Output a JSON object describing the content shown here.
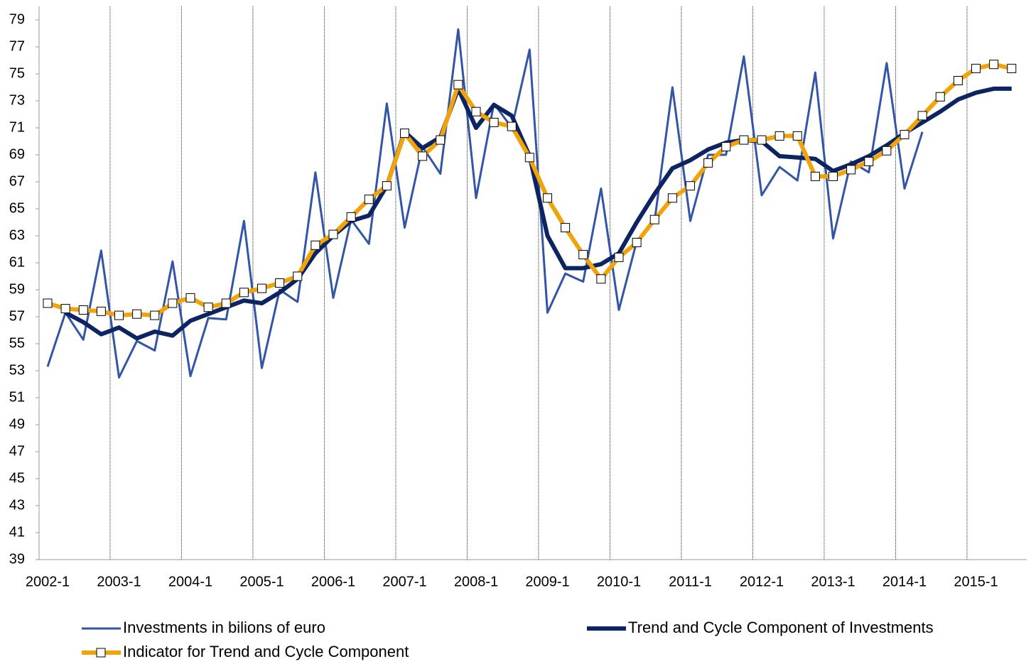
{
  "chart_data": {
    "type": "line",
    "categories": [
      "2002-1",
      null,
      null,
      null,
      "2003-1",
      null,
      null,
      null,
      "2004-1",
      null,
      null,
      null,
      "2005-1",
      null,
      null,
      null,
      "2006-1",
      null,
      null,
      null,
      "2007-1",
      null,
      null,
      null,
      "2008-1",
      null,
      null,
      null,
      "2009-1",
      null,
      null,
      null,
      "2010-1",
      null,
      null,
      null,
      "2011-1",
      null,
      null,
      null,
      "2012-1",
      null,
      null,
      null,
      "2013-1",
      null,
      null,
      null,
      "2014-1",
      null,
      null,
      null,
      "2015-1",
      null,
      null
    ],
    "series": [
      {
        "name": "Investments in bilions of euro",
        "color": "#3355a5",
        "width": 3,
        "marker": false,
        "values": [
          53.3,
          57.3,
          55.3,
          61.9,
          52.5,
          55.2,
          54.5,
          61.1,
          52.6,
          56.9,
          56.8,
          64.1,
          53.2,
          59.0,
          58.1,
          67.7,
          58.4,
          64.2,
          62.4,
          72.8,
          63.6,
          69.6,
          67.6,
          78.3,
          65.8,
          72.8,
          71.0,
          76.8,
          57.3,
          60.2,
          59.6,
          66.5,
          57.5,
          62.6,
          64.1,
          74.0,
          64.1,
          69.0,
          69.0,
          76.3,
          66.0,
          68.1,
          67.1,
          75.1,
          62.8,
          68.5,
          67.7,
          75.8,
          66.5,
          70.7,
          null,
          null,
          null,
          null,
          null
        ]
      },
      {
        "name": "Trend and Cycle Component of Investments",
        "color": "#0c2461",
        "width": 6,
        "marker": false,
        "values": [
          null,
          57.3,
          56.6,
          55.7,
          56.2,
          55.4,
          55.9,
          55.6,
          56.7,
          57.2,
          57.7,
          58.2,
          58.0,
          58.8,
          59.8,
          61.7,
          63.0,
          64.1,
          64.5,
          66.7,
          70.7,
          69.5,
          70.3,
          73.9,
          71.0,
          72.7,
          71.9,
          68.9,
          63.0,
          60.6,
          60.6,
          60.9,
          61.7,
          64.0,
          66.1,
          68.0,
          68.6,
          69.4,
          69.9,
          70.1,
          70.0,
          68.9,
          68.8,
          68.7,
          67.8,
          68.3,
          68.9,
          69.7,
          70.6,
          71.4,
          72.2,
          73.1,
          73.6,
          73.9,
          73.9
        ]
      },
      {
        "name": "Indicator for Trend and Cycle Component",
        "color": "#f0a30a",
        "width": 6,
        "marker": true,
        "values": [
          58.0,
          57.6,
          57.5,
          57.4,
          57.1,
          57.2,
          57.1,
          58.0,
          58.4,
          57.7,
          58.0,
          58.8,
          59.1,
          59.5,
          60.0,
          62.3,
          63.1,
          64.4,
          65.7,
          66.7,
          70.6,
          68.9,
          70.1,
          74.2,
          72.2,
          71.4,
          71.1,
          68.8,
          65.8,
          63.6,
          61.6,
          59.8,
          61.4,
          62.5,
          64.2,
          65.8,
          66.7,
          68.4,
          69.6,
          70.1,
          70.1,
          70.4,
          70.4,
          67.4,
          67.4,
          67.9,
          68.5,
          69.3,
          70.5,
          71.9,
          73.3,
          74.5,
          75.4,
          75.7,
          75.4
        ]
      }
    ],
    "ylim": [
      39,
      80
    ],
    "yticks": [
      39,
      41,
      43,
      45,
      47,
      49,
      51,
      53,
      55,
      57,
      59,
      61,
      63,
      65,
      67,
      69,
      71,
      73,
      75,
      77,
      79
    ],
    "grid": "x"
  }
}
